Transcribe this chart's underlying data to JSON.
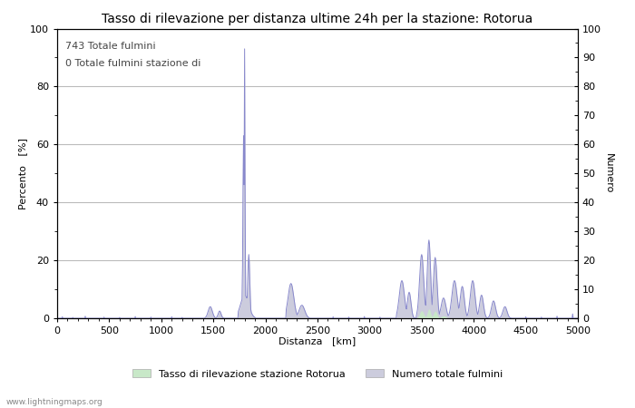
{
  "title": "Tasso di rilevazione per distanza ultime 24h per la stazione: Rotorua",
  "xlabel": "Distanza   [km]",
  "ylabel_left": "Percento   [%]",
  "ylabel_right": "Numero",
  "annotation_line1": "743 Totale fulmini",
  "annotation_line2": "0 Totale fulmini stazione di",
  "legend_label1": "Tasso di rilevazione stazione Rotorua",
  "legend_label2": "Numero totale fulmini",
  "watermark": "www.lightningmaps.org",
  "xlim": [
    0,
    5000
  ],
  "ylim": [
    0,
    100
  ],
  "xticks": [
    0,
    500,
    1000,
    1500,
    2000,
    2500,
    3000,
    3500,
    4000,
    4500,
    5000
  ],
  "yticks_left": [
    0,
    20,
    40,
    60,
    80,
    100
  ],
  "yticks_right": [
    0,
    10,
    20,
    30,
    40,
    50,
    60,
    70,
    80,
    90,
    100
  ],
  "line_color": "#8888cc",
  "fill_color_green": "#c8e8c8",
  "fill_color_blue": "#ccccdd",
  "background_color": "#ffffff",
  "grid_color": "#bbbbbb",
  "title_fontsize": 10,
  "label_fontsize": 8,
  "tick_fontsize": 8,
  "annotation_fontsize": 8
}
